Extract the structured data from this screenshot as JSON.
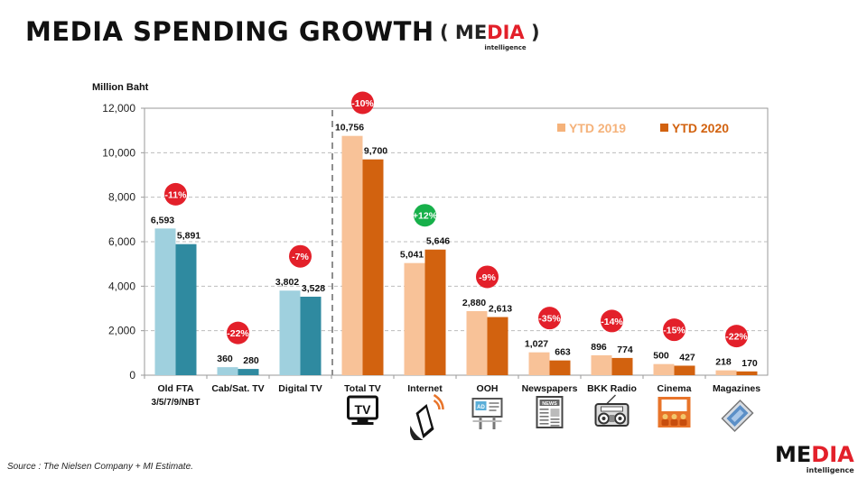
{
  "title": "MEDIA SPENDING GROWTH",
  "logo": {
    "paren_open": "(",
    "part1": "ME",
    "part2": "DIA",
    "paren_close": ")",
    "sub": "intelligence"
  },
  "footer_logo": {
    "part1": "ME",
    "part2": "DIA",
    "sub": "intelligence"
  },
  "source": "Source :  The Nielsen  Company + MI Estimate.",
  "colors": {
    "ytd2019_digital": "#9fd0de",
    "ytd2020_digital": "#2f8aa0",
    "ytd2019_traditional": "#f8c298",
    "ytd2020_traditional": "#d2620f",
    "badge_negative": "#e3202a",
    "badge_positive": "#17b04a",
    "legend_2019": "#f5b27a",
    "legend_2020": "#d2620f"
  },
  "chart_data": {
    "type": "bar",
    "ylabel": "Million Baht",
    "ylim": [
      0,
      12000
    ],
    "yticks": [
      "0",
      "2,000",
      "4,000",
      "6,000",
      "8,000",
      "10,000",
      "12,000"
    ],
    "grid": true,
    "legend_position": "top-right",
    "categories": [
      {
        "label": "Old FTA",
        "label2": "3/5/7/9/NBT",
        "group": "tv_sub",
        "change": "-11%",
        "icon": ""
      },
      {
        "label": "Cab/Sat. TV",
        "label2": "",
        "group": "tv_sub",
        "change": "-22%",
        "icon": ""
      },
      {
        "label": "Digital TV",
        "label2": "",
        "group": "tv_sub",
        "change": "-7%",
        "icon": ""
      },
      {
        "label": "Total TV",
        "label2": "",
        "group": "media",
        "change": "-10%",
        "icon": "tv-icon"
      },
      {
        "label": "Internet",
        "label2": "",
        "group": "media",
        "change": "+12%",
        "icon": "smartphone-icon"
      },
      {
        "label": "OOH",
        "label2": "",
        "group": "media",
        "change": "-9%",
        "icon": "billboard-icon"
      },
      {
        "label": "Newspapers",
        "label2": "",
        "group": "media",
        "change": "-35%",
        "icon": "newspaper-icon"
      },
      {
        "label": "BKK Radio",
        "label2": "",
        "group": "media",
        "change": "-14%",
        "icon": "radio-icon"
      },
      {
        "label": "Cinema",
        "label2": "",
        "group": "media",
        "change": "-15%",
        "icon": "cinema-icon"
      },
      {
        "label": "Magazines",
        "label2": "",
        "group": "media",
        "change": "-22%",
        "icon": "magazine-icon"
      }
    ],
    "series": [
      {
        "name": "YTD 2019",
        "values": [
          6593,
          360,
          3802,
          10756,
          5041,
          2880,
          1027,
          896,
          500,
          218
        ],
        "labels": [
          "6,593",
          "360",
          "3,802",
          "10,756",
          "5,041",
          "2,880",
          "1,027",
          "896",
          "500",
          "218"
        ]
      },
      {
        "name": "YTD 2020",
        "values": [
          5891,
          280,
          3528,
          9700,
          5646,
          2613,
          663,
          774,
          427,
          170
        ],
        "labels": [
          "5,891",
          "280",
          "3,528",
          "9,700",
          "5,646",
          "2,613",
          "663",
          "774",
          "427",
          "170"
        ]
      }
    ]
  }
}
